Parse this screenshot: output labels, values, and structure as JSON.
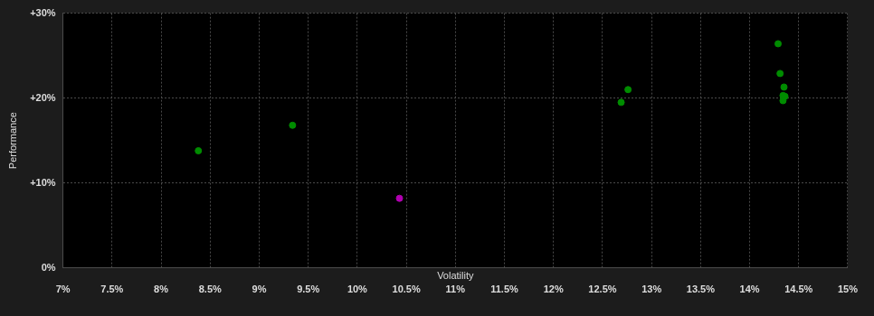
{
  "chart_data": {
    "type": "scatter",
    "x_label": "Volatility",
    "y_label": "Performance",
    "series": [
      {
        "color": "#008c00",
        "marker": "circle",
        "x": [
          8.38,
          9.34,
          12.69,
          12.76,
          14.29,
          14.31,
          14.35,
          14.34,
          14.36,
          14.34
        ],
        "values": [
          13.8,
          16.8,
          19.5,
          21.0,
          26.4,
          22.9,
          21.3,
          20.3,
          20.2,
          19.7
        ]
      },
      {
        "color": "#b000b0",
        "marker": "circle",
        "x": [
          10.43
        ],
        "values": [
          8.2
        ]
      }
    ],
    "xlim": [
      7,
      15
    ],
    "xticks": [
      {
        "value": 7,
        "label": "7%"
      },
      {
        "value": 7.5,
        "label": "7.5%"
      },
      {
        "value": 8,
        "label": "8%"
      },
      {
        "value": 8.5,
        "label": "8.5%"
      },
      {
        "value": 9,
        "label": "9%"
      },
      {
        "value": 9.5,
        "label": "9.5%"
      },
      {
        "value": 10,
        "label": "10%"
      },
      {
        "value": 10.5,
        "label": "10.5%"
      },
      {
        "value": 11,
        "label": "11%"
      },
      {
        "value": 11.5,
        "label": "11.5%"
      },
      {
        "value": 12,
        "label": "12%"
      },
      {
        "value": 12.5,
        "label": "12.5%"
      },
      {
        "value": 13,
        "label": "13%"
      },
      {
        "value": 13.5,
        "label": "13.5%"
      },
      {
        "value": 14,
        "label": "14%"
      },
      {
        "value": 14.5,
        "label": "14.5%"
      },
      {
        "value": 15,
        "label": "15%"
      }
    ],
    "ylim": [
      0,
      30
    ],
    "yticks": [
      {
        "value": 0,
        "label": "0%"
      },
      {
        "value": 10,
        "label": "+10%"
      },
      {
        "value": 20,
        "label": "+20%"
      },
      {
        "value": 30,
        "label": "+30%"
      }
    ],
    "grid": true
  }
}
